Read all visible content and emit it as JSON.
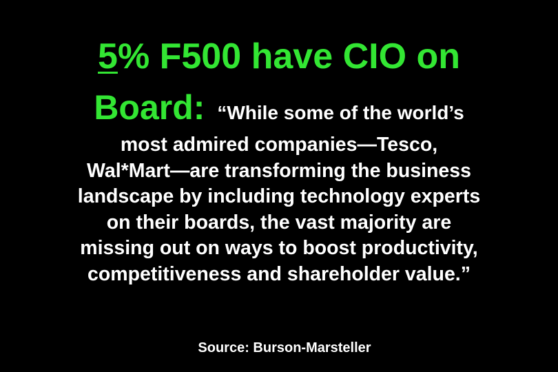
{
  "slide": {
    "background_color": "#000000",
    "title_color": "#33e633",
    "text_color": "#ffffff",
    "title": {
      "line1_underlined": "5",
      "line1_rest": "% F500 have CIO on",
      "line2_heading": "Board:",
      "line2_quote": "“While some of the world’s"
    },
    "quote_lines": [
      "most admired companies—Tesco,",
      "Wal*Mart—are transforming the business",
      "landscape by including technology experts",
      "on their boards, the vast majority are",
      "missing out on ways to boost productivity,",
      "competitiveness and shareholder value.”"
    ],
    "source": "Source: Burson-Marsteller"
  }
}
